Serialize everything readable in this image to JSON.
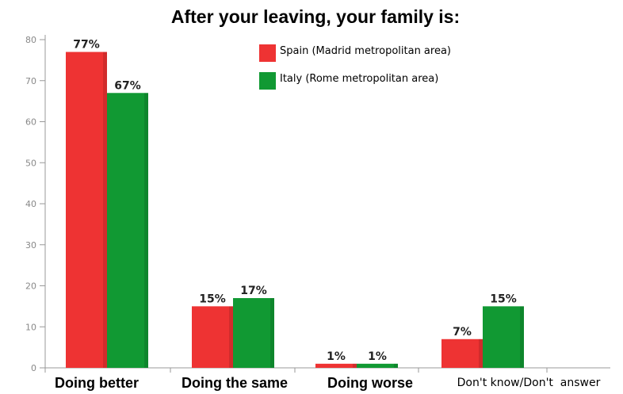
{
  "chart_data": {
    "type": "bar",
    "title": "After your leaving, your family is:",
    "categories": [
      "Doing better",
      "Doing the same",
      "Doing worse",
      "Don't know/Don't  answer"
    ],
    "category_bold": [
      true,
      true,
      true,
      false
    ],
    "series": [
      {
        "name": "Spain (Madrid metropolitan area)",
        "color": "#ee3333",
        "values": [
          77,
          15,
          1,
          7
        ],
        "labels": [
          "77%",
          "15%",
          "1%",
          "7%"
        ]
      },
      {
        "name": "Italy (Rome metropolitan area)",
        "color": "#119933",
        "values": [
          67,
          17,
          1,
          15
        ],
        "labels": [
          "67%",
          "17%",
          "1%",
          "15%"
        ]
      }
    ],
    "yticks": [
      0,
      10,
      20,
      30,
      40,
      50,
      60,
      70,
      80
    ],
    "ylim": [
      0,
      80
    ],
    "xlabel": "",
    "ylabel": "",
    "grid": false,
    "legend_position": "top-right"
  }
}
